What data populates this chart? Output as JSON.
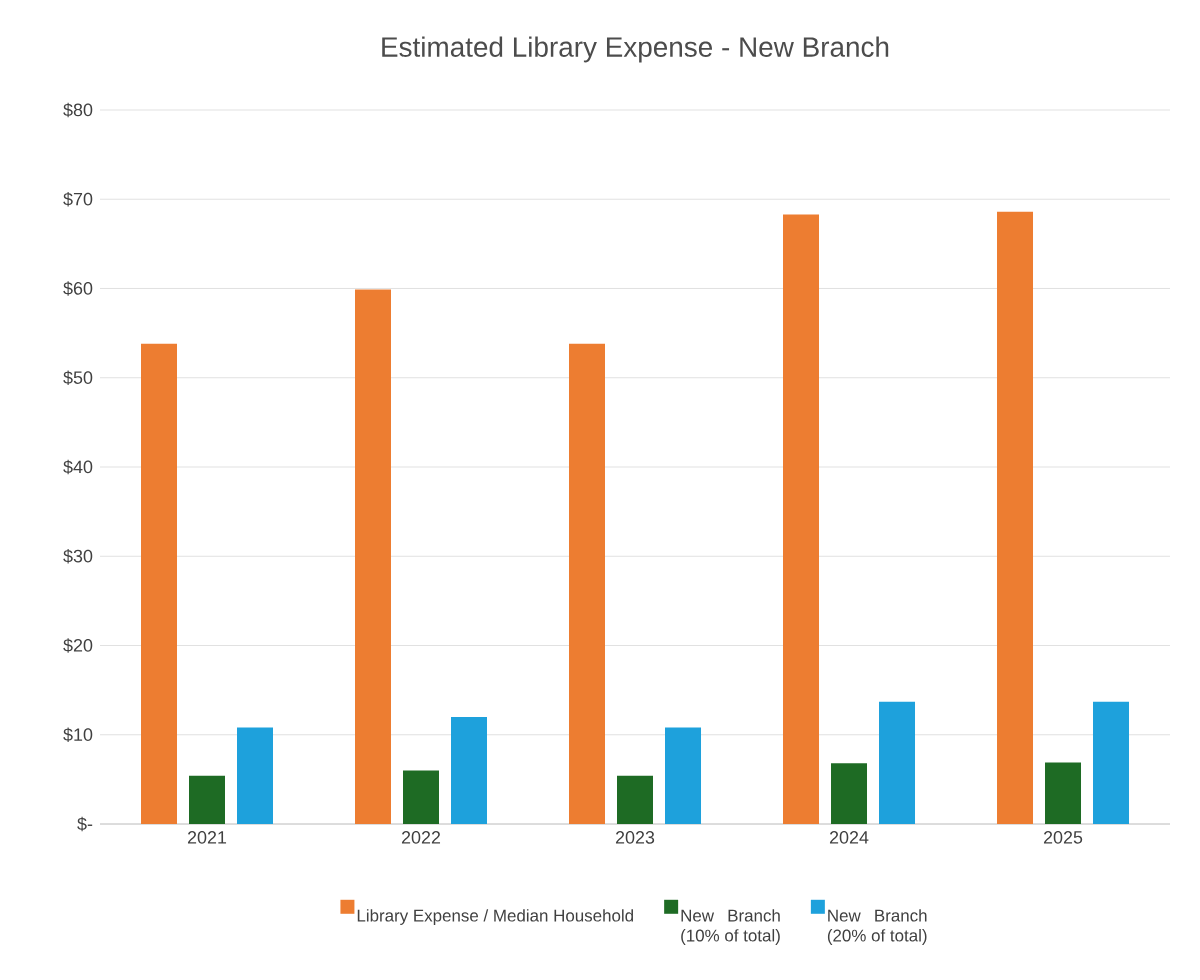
{
  "chart_data": {
    "type": "bar",
    "title": "Estimated Library Expense - New Branch",
    "categories": [
      "2021",
      "2022",
      "2023",
      "2024",
      "2025"
    ],
    "series": [
      {
        "name": "Library Expense / Median Household",
        "color": "#ed7d31",
        "values": [
          53.8,
          59.9,
          53.8,
          68.3,
          68.6
        ]
      },
      {
        "name": "New Branch (10% of total)",
        "color": "#1e6b24",
        "values": [
          5.4,
          6.0,
          5.4,
          6.8,
          6.9
        ]
      },
      {
        "name": "New Branch (20% of total)",
        "color": "#1ea1dc",
        "values": [
          10.8,
          12.0,
          10.8,
          13.7,
          13.7
        ]
      }
    ],
    "ylim": [
      0,
      80
    ],
    "yticks": [
      {
        "value": 0,
        "label": "$-"
      },
      {
        "value": 10,
        "label": "$10"
      },
      {
        "value": 20,
        "label": "$20"
      },
      {
        "value": 30,
        "label": "$30"
      },
      {
        "value": 40,
        "label": "$40"
      },
      {
        "value": 50,
        "label": "$50"
      },
      {
        "value": 60,
        "label": "$60"
      },
      {
        "value": 70,
        "label": "$70"
      },
      {
        "value": 80,
        "label": "$80"
      }
    ],
    "grid": "y",
    "legend": "bottom"
  }
}
